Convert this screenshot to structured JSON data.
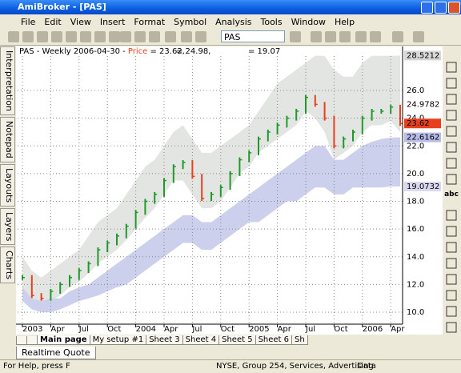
{
  "window": {
    "title": "AmiBroker - [PAS]"
  },
  "menu": [
    "File",
    "Edit",
    "View",
    "Insert",
    "Format",
    "Symbol",
    "Analysis",
    "Tools",
    "Window",
    "Help"
  ],
  "toolbar": {
    "symbol": "PAS"
  },
  "side_tabs": [
    "Interpretation",
    "Notepad",
    "Layouts",
    "Layers",
    "Charts"
  ],
  "right_tools_label": "abc",
  "chart": {
    "header": {
      "ticker_info": "PAS - Weekly 2006-04-30 - ",
      "price_label": "Price",
      "price_value": " = 23.62,",
      "ind1": "= 24.98,",
      "ind2": "= 19.07"
    },
    "ylim": [
      8.9,
      29.2
    ],
    "yticks": [
      {
        "value": 10,
        "label": "10.0"
      },
      {
        "value": 12,
        "label": "12.0"
      },
      {
        "value": 14,
        "label": "14.0"
      },
      {
        "value": 16,
        "label": "16.0"
      },
      {
        "value": 18,
        "label": "18.0"
      },
      {
        "value": 20,
        "label": "20.0"
      },
      {
        "value": 22,
        "label": "22.0"
      },
      {
        "value": 24,
        "label": "24.0"
      },
      {
        "value": 26,
        "label": "26.0"
      }
    ],
    "xlabels": [
      "2003",
      "Apr",
      "Jul",
      "Oct",
      "2004",
      "Apr",
      "Jul",
      "Oct",
      "2005",
      "Apr",
      "Jul",
      "Oct",
      "2006",
      "Apr"
    ],
    "up_color": "#1f9a2a",
    "down_color": "#e8401c",
    "price": [
      12.5,
      11.2,
      11.0,
      11.5,
      12.0,
      12.5,
      13.0,
      13.5,
      14.5,
      15.0,
      15.5,
      16.2,
      17.2,
      18.0,
      18.5,
      19.5,
      20.5,
      20.8,
      19.8,
      18.2,
      18.5,
      19.0,
      20.0,
      21.0,
      21.5,
      22.5,
      23.0,
      23.5,
      24.0,
      24.5,
      25.5,
      25.0,
      24.0,
      22.0,
      22.5,
      23.0,
      24.0,
      24.5,
      24.5,
      24.8,
      23.62
    ],
    "gray_band": {
      "color": "#e3e5e3",
      "upper": [
        14.0,
        13.0,
        12.5,
        13.0,
        13.5,
        14.0,
        14.5,
        15.5,
        16.5,
        17.0,
        17.5,
        18.5,
        19.5,
        20.5,
        21.0,
        22.0,
        23.0,
        23.5,
        22.5,
        21.5,
        21.5,
        22.0,
        22.5,
        23.0,
        23.5,
        24.5,
        25.5,
        26.5,
        27.0,
        27.5,
        28.0,
        28.5,
        28.5,
        27.5,
        27.0,
        27.0,
        28.0,
        28.5,
        28.5,
        28.5,
        28.52
      ],
      "lower": [
        11.5,
        10.5,
        10.3,
        10.8,
        11.2,
        11.8,
        12.2,
        12.8,
        13.5,
        14.0,
        14.5,
        15.2,
        16.0,
        16.8,
        17.5,
        18.5,
        19.5,
        19.5,
        18.5,
        17.5,
        17.5,
        18.0,
        19.0,
        20.0,
        20.5,
        21.5,
        22.0,
        22.5,
        23.0,
        23.5,
        24.5,
        24.0,
        23.0,
        21.0,
        21.5,
        22.0,
        23.0,
        23.5,
        23.5,
        23.8,
        23.0
      ]
    },
    "blue_band": {
      "color": "#cdd0ec",
      "upper": [
        11.8,
        11.0,
        10.8,
        11.0,
        11.0,
        11.5,
        11.8,
        12.0,
        12.5,
        13.0,
        13.5,
        14.0,
        14.5,
        15.0,
        15.5,
        16.0,
        16.5,
        17.0,
        17.0,
        16.5,
        16.5,
        17.0,
        17.5,
        18.0,
        18.5,
        19.0,
        19.5,
        20.0,
        20.5,
        21.0,
        21.5,
        22.0,
        22.0,
        21.0,
        21.0,
        21.5,
        22.0,
        22.3,
        22.5,
        22.6,
        22.62
      ],
      "lower": [
        10.8,
        10.2,
        10.0,
        10.0,
        10.2,
        10.5,
        10.8,
        11.0,
        11.2,
        11.5,
        11.8,
        12.0,
        12.5,
        13.0,
        13.5,
        14.0,
        14.5,
        15.0,
        15.0,
        14.5,
        14.5,
        15.0,
        15.5,
        16.0,
        16.5,
        16.5,
        17.0,
        17.5,
        18.0,
        18.0,
        18.5,
        19.0,
        19.0,
        18.5,
        18.5,
        19.0,
        19.0,
        19.0,
        19.0,
        19.07,
        19.07
      ]
    },
    "value_tags": [
      {
        "value": 28.5212,
        "bg": "#d8d8d8",
        "fg": "#000000"
      },
      {
        "value": 24.9782,
        "bg": "#ffffff",
        "fg": "#000000"
      },
      {
        "value": 23.62,
        "bg": "#e8401c",
        "fg": "#000000"
      },
      {
        "value": 22.6162,
        "bg": "#b8bce8",
        "fg": "#000000"
      },
      {
        "value": 19.0732,
        "bg": "#d8d8f0",
        "fg": "#000000"
      }
    ]
  },
  "sheet_tabs": [
    "Main page",
    "My setup #1",
    "Sheet 3",
    "Sheet 4",
    "Sheet 5",
    "Sheet 6",
    "Sh"
  ],
  "bottom_tab": "Realtime Quote",
  "status": [
    "For Help, press F",
    "NYSE, Group 254, Services, Advertising",
    "Data"
  ]
}
